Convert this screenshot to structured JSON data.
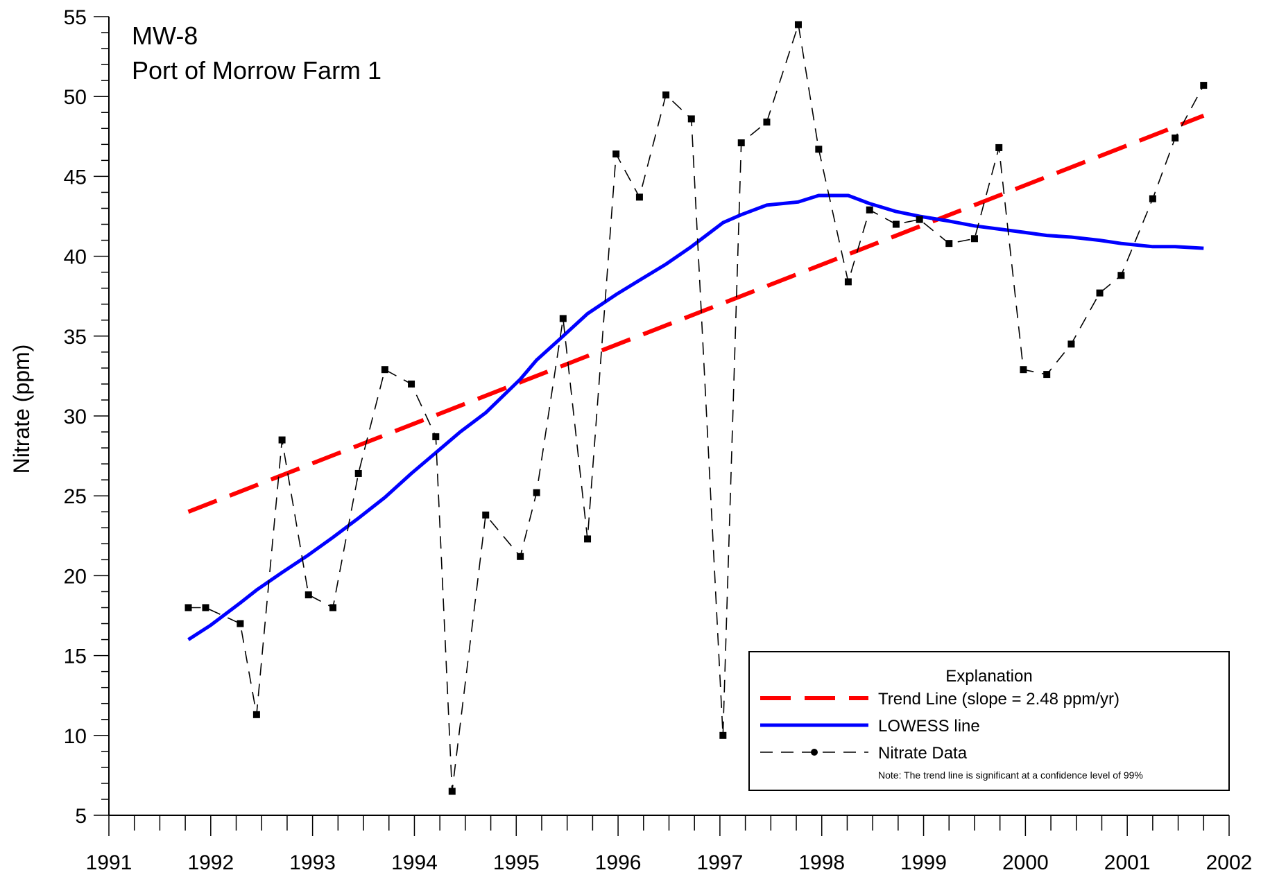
{
  "chart_data": {
    "type": "line",
    "title_lines": [
      "MW-8",
      "Port of Morrow Farm 1"
    ],
    "ylabel": "Nitrate (ppm)",
    "xlabel": "",
    "xlim": [
      1991,
      2002
    ],
    "ylim": [
      5,
      55
    ],
    "x_ticks": [
      1991,
      1992,
      1993,
      1994,
      1995,
      1996,
      1997,
      1998,
      1999,
      2000,
      2001,
      2002
    ],
    "y_ticks": [
      5,
      10,
      15,
      20,
      25,
      30,
      35,
      40,
      45,
      50,
      55
    ],
    "grid": false,
    "legend": {
      "title": "Explanation",
      "placement": "lower-right",
      "note": "Note: The trend line is significant at a confidence level of 99%",
      "entries": [
        "Trend Line (slope = 2.48 ppm/yr)",
        "LOWESS line",
        "Nitrate Data"
      ]
    },
    "series": [
      {
        "name": "Nitrate Data",
        "style": "dashed-markers",
        "color": "#000000",
        "x": [
          1991.78,
          1991.95,
          1992.29,
          1992.45,
          1992.7,
          1992.96,
          1993.2,
          1993.45,
          1993.71,
          1993.97,
          1994.21,
          1994.37,
          1994.7,
          1995.04,
          1995.2,
          1995.46,
          1995.7,
          1995.98,
          1996.21,
          1996.47,
          1996.72,
          1997.03,
          1997.21,
          1997.46,
          1997.77,
          1997.97,
          1998.26,
          1998.47,
          1998.73,
          1998.96,
          1999.25,
          1999.5,
          1999.74,
          1999.98,
          2000.21,
          2000.45,
          2000.73,
          2000.94,
          2001.25,
          2001.47,
          2001.75
        ],
        "y": [
          18.0,
          18.0,
          17.0,
          11.3,
          28.5,
          18.8,
          18.0,
          26.4,
          32.9,
          32.0,
          28.7,
          6.5,
          23.8,
          21.2,
          25.2,
          36.1,
          22.3,
          46.4,
          43.7,
          50.1,
          48.6,
          10.0,
          47.1,
          48.4,
          54.5,
          46.7,
          38.4,
          42.9,
          42.0,
          42.3,
          40.8,
          41.1,
          46.8,
          32.9,
          32.6,
          34.5,
          37.7,
          38.8,
          43.6,
          47.4,
          50.7
        ]
      },
      {
        "name": "LOWESS line",
        "style": "solid",
        "color": "#0000ff",
        "x": [
          1991.78,
          1992.0,
          1992.29,
          1992.45,
          1992.7,
          1992.96,
          1993.2,
          1993.45,
          1993.71,
          1993.97,
          1994.21,
          1994.45,
          1994.7,
          1995.04,
          1995.2,
          1995.46,
          1995.7,
          1995.98,
          1996.21,
          1996.47,
          1996.72,
          1997.03,
          1997.21,
          1997.46,
          1997.77,
          1997.97,
          1998.26,
          1998.47,
          1998.73,
          1998.96,
          1999.25,
          1999.5,
          1999.74,
          1999.98,
          2000.21,
          2000.45,
          2000.73,
          2000.94,
          2001.25,
          2001.47,
          2001.75
        ],
        "y": [
          16.0,
          16.9,
          18.3,
          19.1,
          20.2,
          21.3,
          22.4,
          23.6,
          24.9,
          26.4,
          27.7,
          29.0,
          30.2,
          32.3,
          33.5,
          35.0,
          36.4,
          37.6,
          38.5,
          39.5,
          40.6,
          42.1,
          42.6,
          43.2,
          43.4,
          43.8,
          43.8,
          43.3,
          42.8,
          42.5,
          42.2,
          41.9,
          41.7,
          41.5,
          41.3,
          41.2,
          41.0,
          40.8,
          40.6,
          40.6,
          40.5
        ]
      },
      {
        "name": "Trend Line (slope = 2.48 ppm/yr)",
        "style": "long-dash",
        "color": "#ff0000",
        "x": [
          1991.78,
          2001.75
        ],
        "y": [
          24.0,
          48.8
        ]
      }
    ]
  }
}
